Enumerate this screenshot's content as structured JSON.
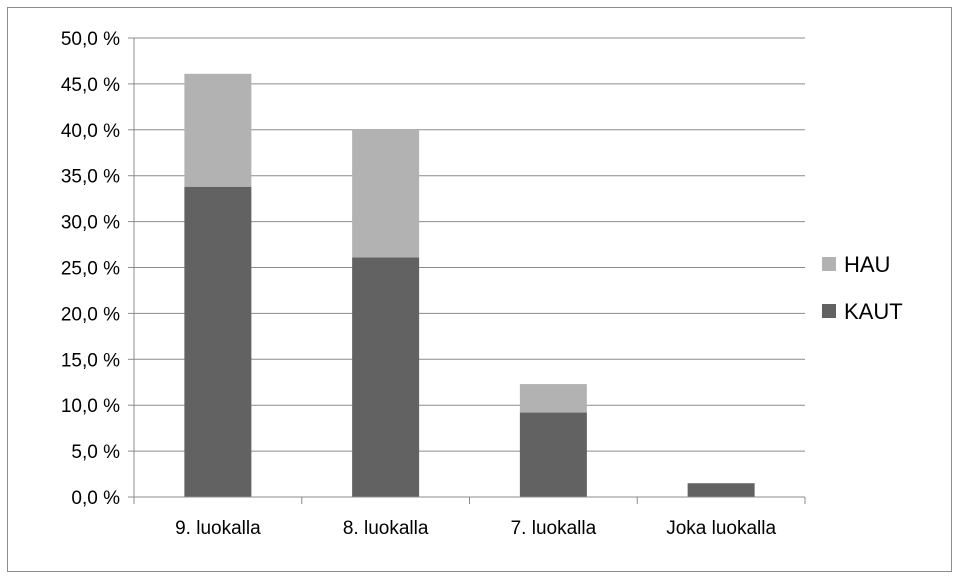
{
  "chart_data": {
    "type": "bar",
    "stacked": true,
    "categories": [
      "9. luokalla",
      "8. luokalla",
      "7. luokalla",
      "Joka luokalla"
    ],
    "series": [
      {
        "name": "KAUT",
        "color": "#626262",
        "values": [
          33.8,
          26.1,
          9.2,
          1.5
        ]
      },
      {
        "name": "HAU",
        "color": "#b2b2b2",
        "values": [
          12.3,
          13.9,
          3.1,
          0.0
        ]
      }
    ],
    "yticks": [
      "0,0 %",
      "5,0 %",
      "10,0 %",
      "15,0 %",
      "20,0 %",
      "25,0 %",
      "30,0 %",
      "35,0 %",
      "40,0 %",
      "45,0 %",
      "50,0 %"
    ],
    "ylim": [
      0,
      50
    ],
    "grid": true,
    "legend": {
      "position": "right",
      "entries": [
        {
          "label": "HAU",
          "color": "#b2b2b2"
        },
        {
          "label": "KAUT",
          "color": "#626262"
        }
      ]
    },
    "title": "",
    "xlabel": "",
    "ylabel": ""
  }
}
